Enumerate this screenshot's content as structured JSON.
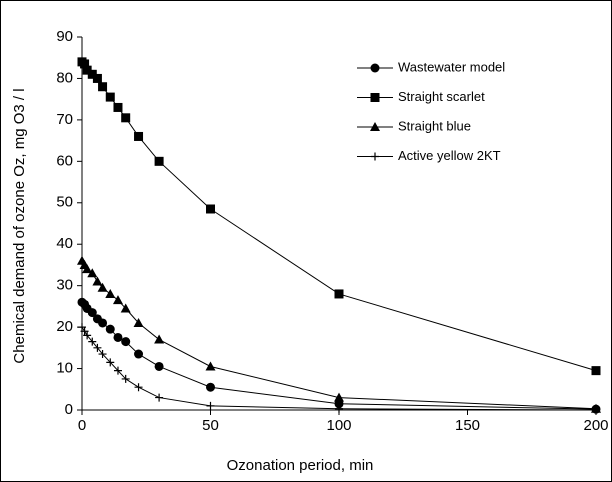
{
  "chart_data": {
    "type": "line",
    "xlabel": "Ozonation period, min",
    "ylabel": "Chemical demand of ozone Oz, mg O3 / l",
    "x": [
      0,
      1,
      2,
      4,
      6,
      8,
      11,
      14,
      17,
      22,
      30,
      50,
      100,
      200
    ],
    "series": [
      {
        "name": "Wastewater model",
        "color": "#000000",
        "marker": "circle",
        "values": [
          26,
          25.5,
          24.5,
          23.5,
          22,
          21,
          19.5,
          17.5,
          16.5,
          13.5,
          10.5,
          5.5,
          1.5,
          0.2
        ]
      },
      {
        "name": "Straight scarlet",
        "color": "#000000",
        "marker": "square",
        "values": [
          84,
          83.5,
          82,
          81,
          80,
          78,
          75.5,
          73,
          70.5,
          66,
          60,
          48.5,
          28,
          9.5
        ]
      },
      {
        "name": "Straight blue",
        "color": "#000000",
        "marker": "triangle",
        "values": [
          36,
          35,
          34,
          33,
          31,
          29.5,
          28,
          26.5,
          24.5,
          21,
          17,
          10.5,
          3,
          0.3
        ]
      },
      {
        "name": "Active yellow  2KT",
        "color": "#000000",
        "marker": "plus",
        "values": [
          20,
          19,
          18,
          16.5,
          15,
          13.5,
          11.5,
          9.5,
          7.5,
          5.5,
          3,
          1,
          0.3,
          0
        ]
      }
    ],
    "xlim": [
      0,
      200
    ],
    "xticks": [
      0,
      50,
      100,
      150,
      200
    ],
    "ylim": [
      0,
      90
    ],
    "yticks": [
      0,
      10,
      20,
      30,
      40,
      50,
      60,
      70,
      80,
      90
    ]
  }
}
